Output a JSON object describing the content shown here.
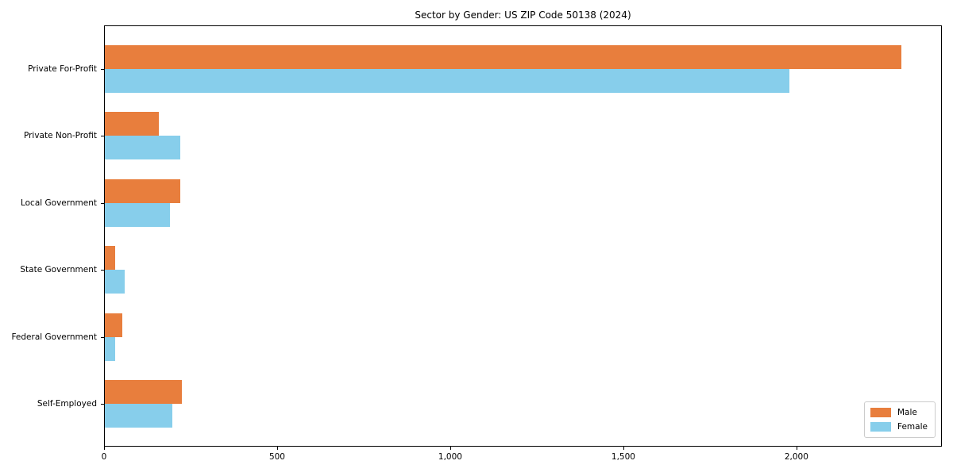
{
  "chart_data": {
    "type": "bar",
    "orientation": "horizontal",
    "title": "Sector by Gender: US ZIP Code 50138 (2024)",
    "categories": [
      "Private For-Profit",
      "Private Non-Profit",
      "Local Government",
      "State Government",
      "Federal Government",
      "Self-Employed"
    ],
    "series": [
      {
        "name": "Male",
        "color": "#E87E3D",
        "values": [
          2300,
          156,
          218,
          30,
          50,
          222
        ]
      },
      {
        "name": "Female",
        "color": "#87CEEB",
        "values": [
          1977,
          218,
          188,
          57,
          30,
          195
        ]
      }
    ],
    "xlabel": "",
    "ylabel": "",
    "xlim": [
      0,
      2420
    ],
    "x_ticks": [
      0,
      500,
      1000,
      1500,
      2000
    ],
    "x_tick_labels": [
      "0",
      "500",
      "1,000",
      "1,500",
      "2,000"
    ],
    "legend_position": "lower-right",
    "grid": false,
    "background_color": "#ffffff",
    "axis_color": "#000000"
  }
}
